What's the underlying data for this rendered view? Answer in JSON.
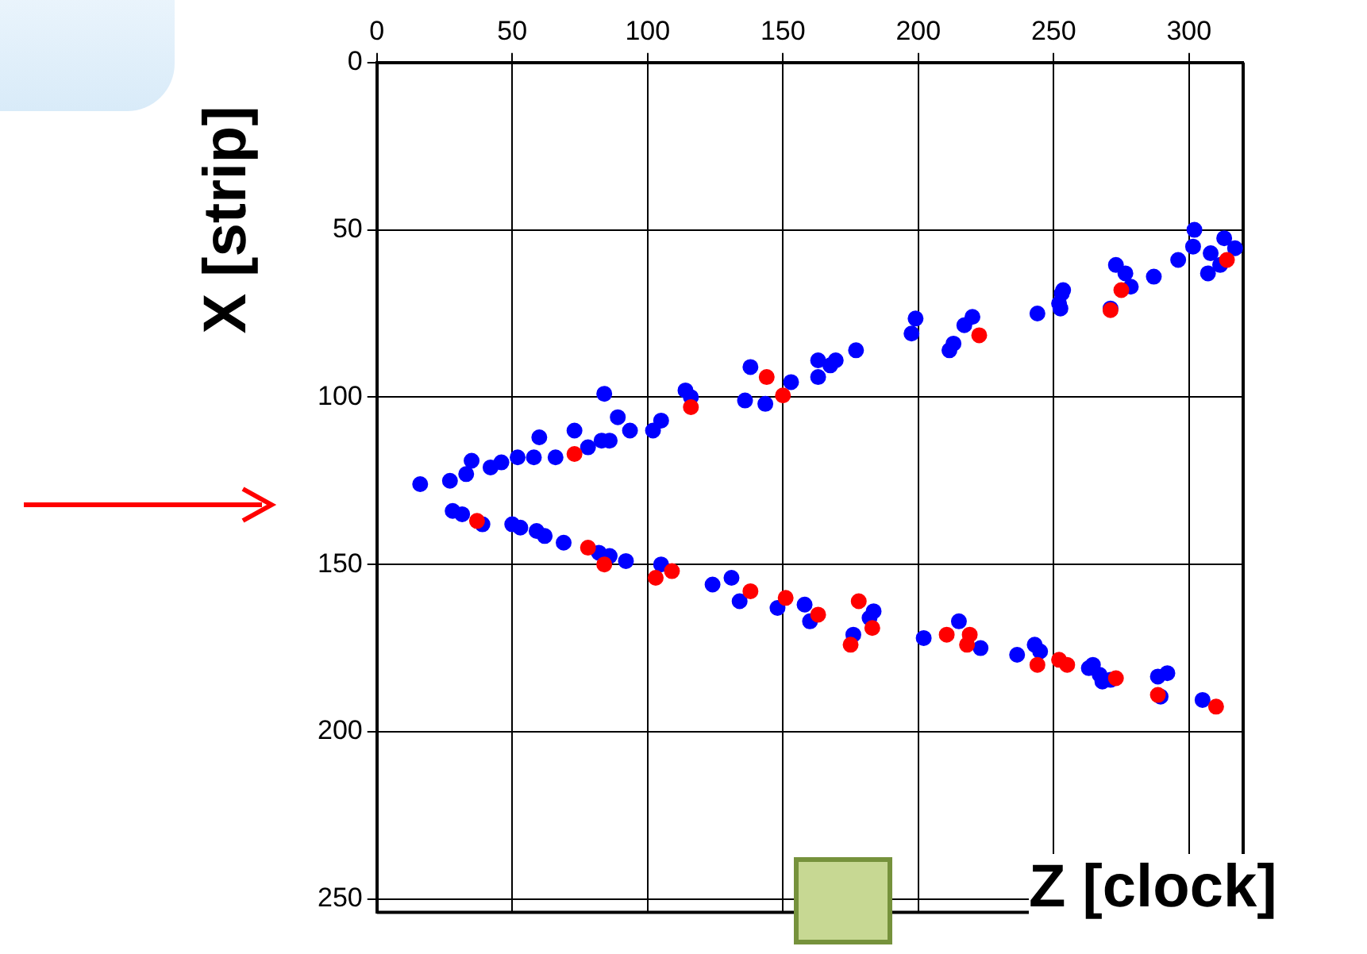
{
  "chart_data": {
    "type": "scatter",
    "xlabel": "Z [clock]",
    "ylabel": "X [strip]",
    "xlim": [
      0,
      320
    ],
    "ylim": [
      254,
      0
    ],
    "xticks": [
      0,
      50,
      100,
      150,
      200,
      250,
      300
    ],
    "yticks": [
      0,
      50,
      100,
      150,
      200,
      250
    ],
    "grid": true,
    "legend": false,
    "marker": "circle",
    "series": [
      {
        "color": "#ff0000",
        "x": [
          73,
          37,
          78,
          84,
          103,
          109,
          138,
          151,
          163,
          178,
          183,
          175,
          210.5,
          219,
          218,
          244,
          252,
          255,
          271,
          275,
          314,
          273,
          288.5,
          310,
          150,
          144,
          222.5,
          116
        ],
        "values": [
          117,
          137,
          145,
          150,
          154,
          152,
          158,
          160,
          165,
          161,
          169,
          174,
          171,
          171,
          174,
          180,
          178.5,
          180,
          74,
          68,
          59,
          184,
          189,
          192.5,
          99.5,
          94,
          81.5,
          103
        ]
      },
      {
        "color": "#0000ff",
        "x": [
          84,
          89,
          93.5,
          73,
          60,
          114,
          116,
          105,
          102,
          83,
          86,
          78,
          66,
          58,
          52,
          46,
          42,
          35,
          33,
          27,
          16,
          28,
          31.5,
          39,
          50,
          53,
          59,
          62,
          69,
          82,
          86,
          92,
          105,
          124,
          131,
          134,
          148,
          158,
          160,
          183.5,
          182,
          176,
          202,
          215,
          223,
          236.5,
          243,
          245,
          264.5,
          267,
          271,
          253,
          252,
          271,
          273,
          276.5,
          278.5,
          287,
          296,
          302,
          301.5,
          308,
          313,
          317,
          307,
          311.5,
          136,
          143.5,
          153,
          138,
          163,
          167.5,
          163,
          169.5,
          177,
          197.5,
          199,
          211.5,
          213,
          217,
          220,
          244,
          252.5,
          253.5,
          263,
          268,
          288.5,
          292,
          289.5,
          305
        ],
        "values": [
          99,
          106,
          110,
          110,
          112,
          98,
          100,
          107,
          110,
          113,
          113,
          115,
          118,
          118,
          118,
          119.5,
          121,
          119,
          123,
          125,
          126,
          134,
          135,
          138,
          138,
          139,
          140,
          141.5,
          143.5,
          146.5,
          147.5,
          149,
          150,
          156,
          154,
          161,
          163,
          162,
          167,
          164,
          166,
          171,
          172,
          167,
          175,
          177,
          174,
          176,
          180,
          183,
          184.5,
          69,
          72,
          73.5,
          60.5,
          63,
          67,
          64,
          59,
          50,
          55,
          57,
          52.5,
          55.5,
          63,
          60.5,
          101,
          102,
          95.5,
          91,
          94,
          90.5,
          89,
          89,
          86,
          81,
          76.5,
          86,
          84,
          78.5,
          76,
          75,
          73.5,
          68,
          181,
          185,
          183.5,
          182.5,
          189.5,
          190.5
        ]
      }
    ]
  }
}
